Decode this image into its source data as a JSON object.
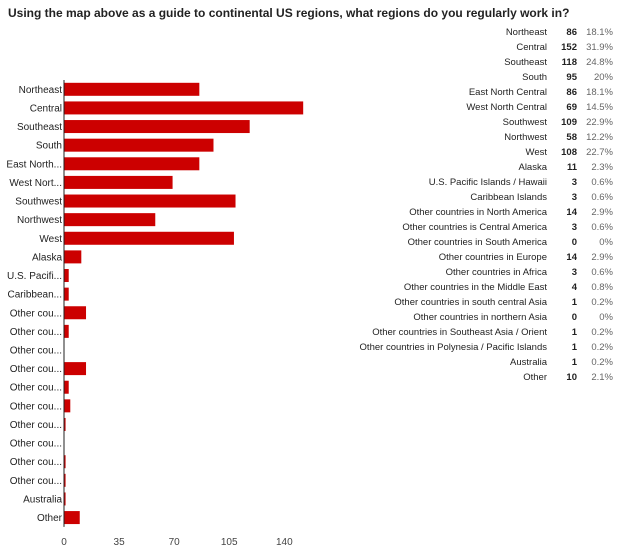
{
  "question": "Using the map above as a guide to continental US regions, what regions do you regularly work in?",
  "colors": {
    "bar": "#cc0000",
    "axis": "#222222",
    "grid": "#dddddd"
  },
  "chart_data": {
    "type": "bar",
    "orientation": "horizontal",
    "title": "",
    "xlabel": "",
    "ylabel": "",
    "xlim": [
      0,
      152
    ],
    "x_ticks": [
      "0",
      "35",
      "70",
      "105",
      "140"
    ],
    "x_tick_values": [
      0,
      35,
      70,
      105,
      140
    ],
    "grid": false,
    "categories": [
      "Northeast",
      "Central",
      "Southeast",
      "South",
      "East North...",
      "West Nort...",
      "Southwest",
      "Northwest",
      "West",
      "Alaska",
      "U.S. Pacifi...",
      "Caribbean...",
      "Other cou...",
      "Other cou...",
      "Other cou...",
      "Other cou...",
      "Other cou...",
      "Other cou...",
      "Other cou...",
      "Other cou...",
      "Other cou...",
      "Other cou...",
      "Australia",
      "Other"
    ],
    "values": [
      86,
      152,
      118,
      95,
      86,
      69,
      109,
      58,
      108,
      11,
      3,
      3,
      14,
      3,
      0,
      14,
      3,
      4,
      1,
      0,
      1,
      1,
      1,
      10
    ]
  },
  "summary": [
    {
      "label": "Northeast",
      "count": "86",
      "percent": "18.1%"
    },
    {
      "label": "Central",
      "count": "152",
      "percent": "31.9%"
    },
    {
      "label": "Southeast",
      "count": "118",
      "percent": "24.8%"
    },
    {
      "label": "South",
      "count": "95",
      "percent": "20%"
    },
    {
      "label": "East North Central",
      "count": "86",
      "percent": "18.1%"
    },
    {
      "label": "West North Central",
      "count": "69",
      "percent": "14.5%"
    },
    {
      "label": "Southwest",
      "count": "109",
      "percent": "22.9%"
    },
    {
      "label": "Northwest",
      "count": "58",
      "percent": "12.2%"
    },
    {
      "label": "West",
      "count": "108",
      "percent": "22.7%"
    },
    {
      "label": "Alaska",
      "count": "11",
      "percent": "2.3%"
    },
    {
      "label": "U.S. Pacific Islands / Hawaii",
      "count": "3",
      "percent": "0.6%"
    },
    {
      "label": "Caribbean Islands",
      "count": "3",
      "percent": "0.6%"
    },
    {
      "label": "Other countries in North America",
      "count": "14",
      "percent": "2.9%"
    },
    {
      "label": "Other countries is Central America",
      "count": "3",
      "percent": "0.6%"
    },
    {
      "label": "Other countries in South America",
      "count": "0",
      "percent": "0%"
    },
    {
      "label": "Other countries in Europe",
      "count": "14",
      "percent": "2.9%"
    },
    {
      "label": "Other countries in Africa",
      "count": "3",
      "percent": "0.6%"
    },
    {
      "label": "Other countries in the Middle East",
      "count": "4",
      "percent": "0.8%"
    },
    {
      "label": "Other countries in south central Asia",
      "count": "1",
      "percent": "0.2%"
    },
    {
      "label": "Other countries in northern Asia",
      "count": "0",
      "percent": "0%"
    },
    {
      "label": "Other countries in Southeast Asia / Orient",
      "count": "1",
      "percent": "0.2%"
    },
    {
      "label": "Other countries in Polynesia / Pacific Islands",
      "count": "1",
      "percent": "0.2%"
    },
    {
      "label": "Australia",
      "count": "1",
      "percent": "0.2%"
    },
    {
      "label": "Other",
      "count": "10",
      "percent": "2.1%"
    }
  ]
}
